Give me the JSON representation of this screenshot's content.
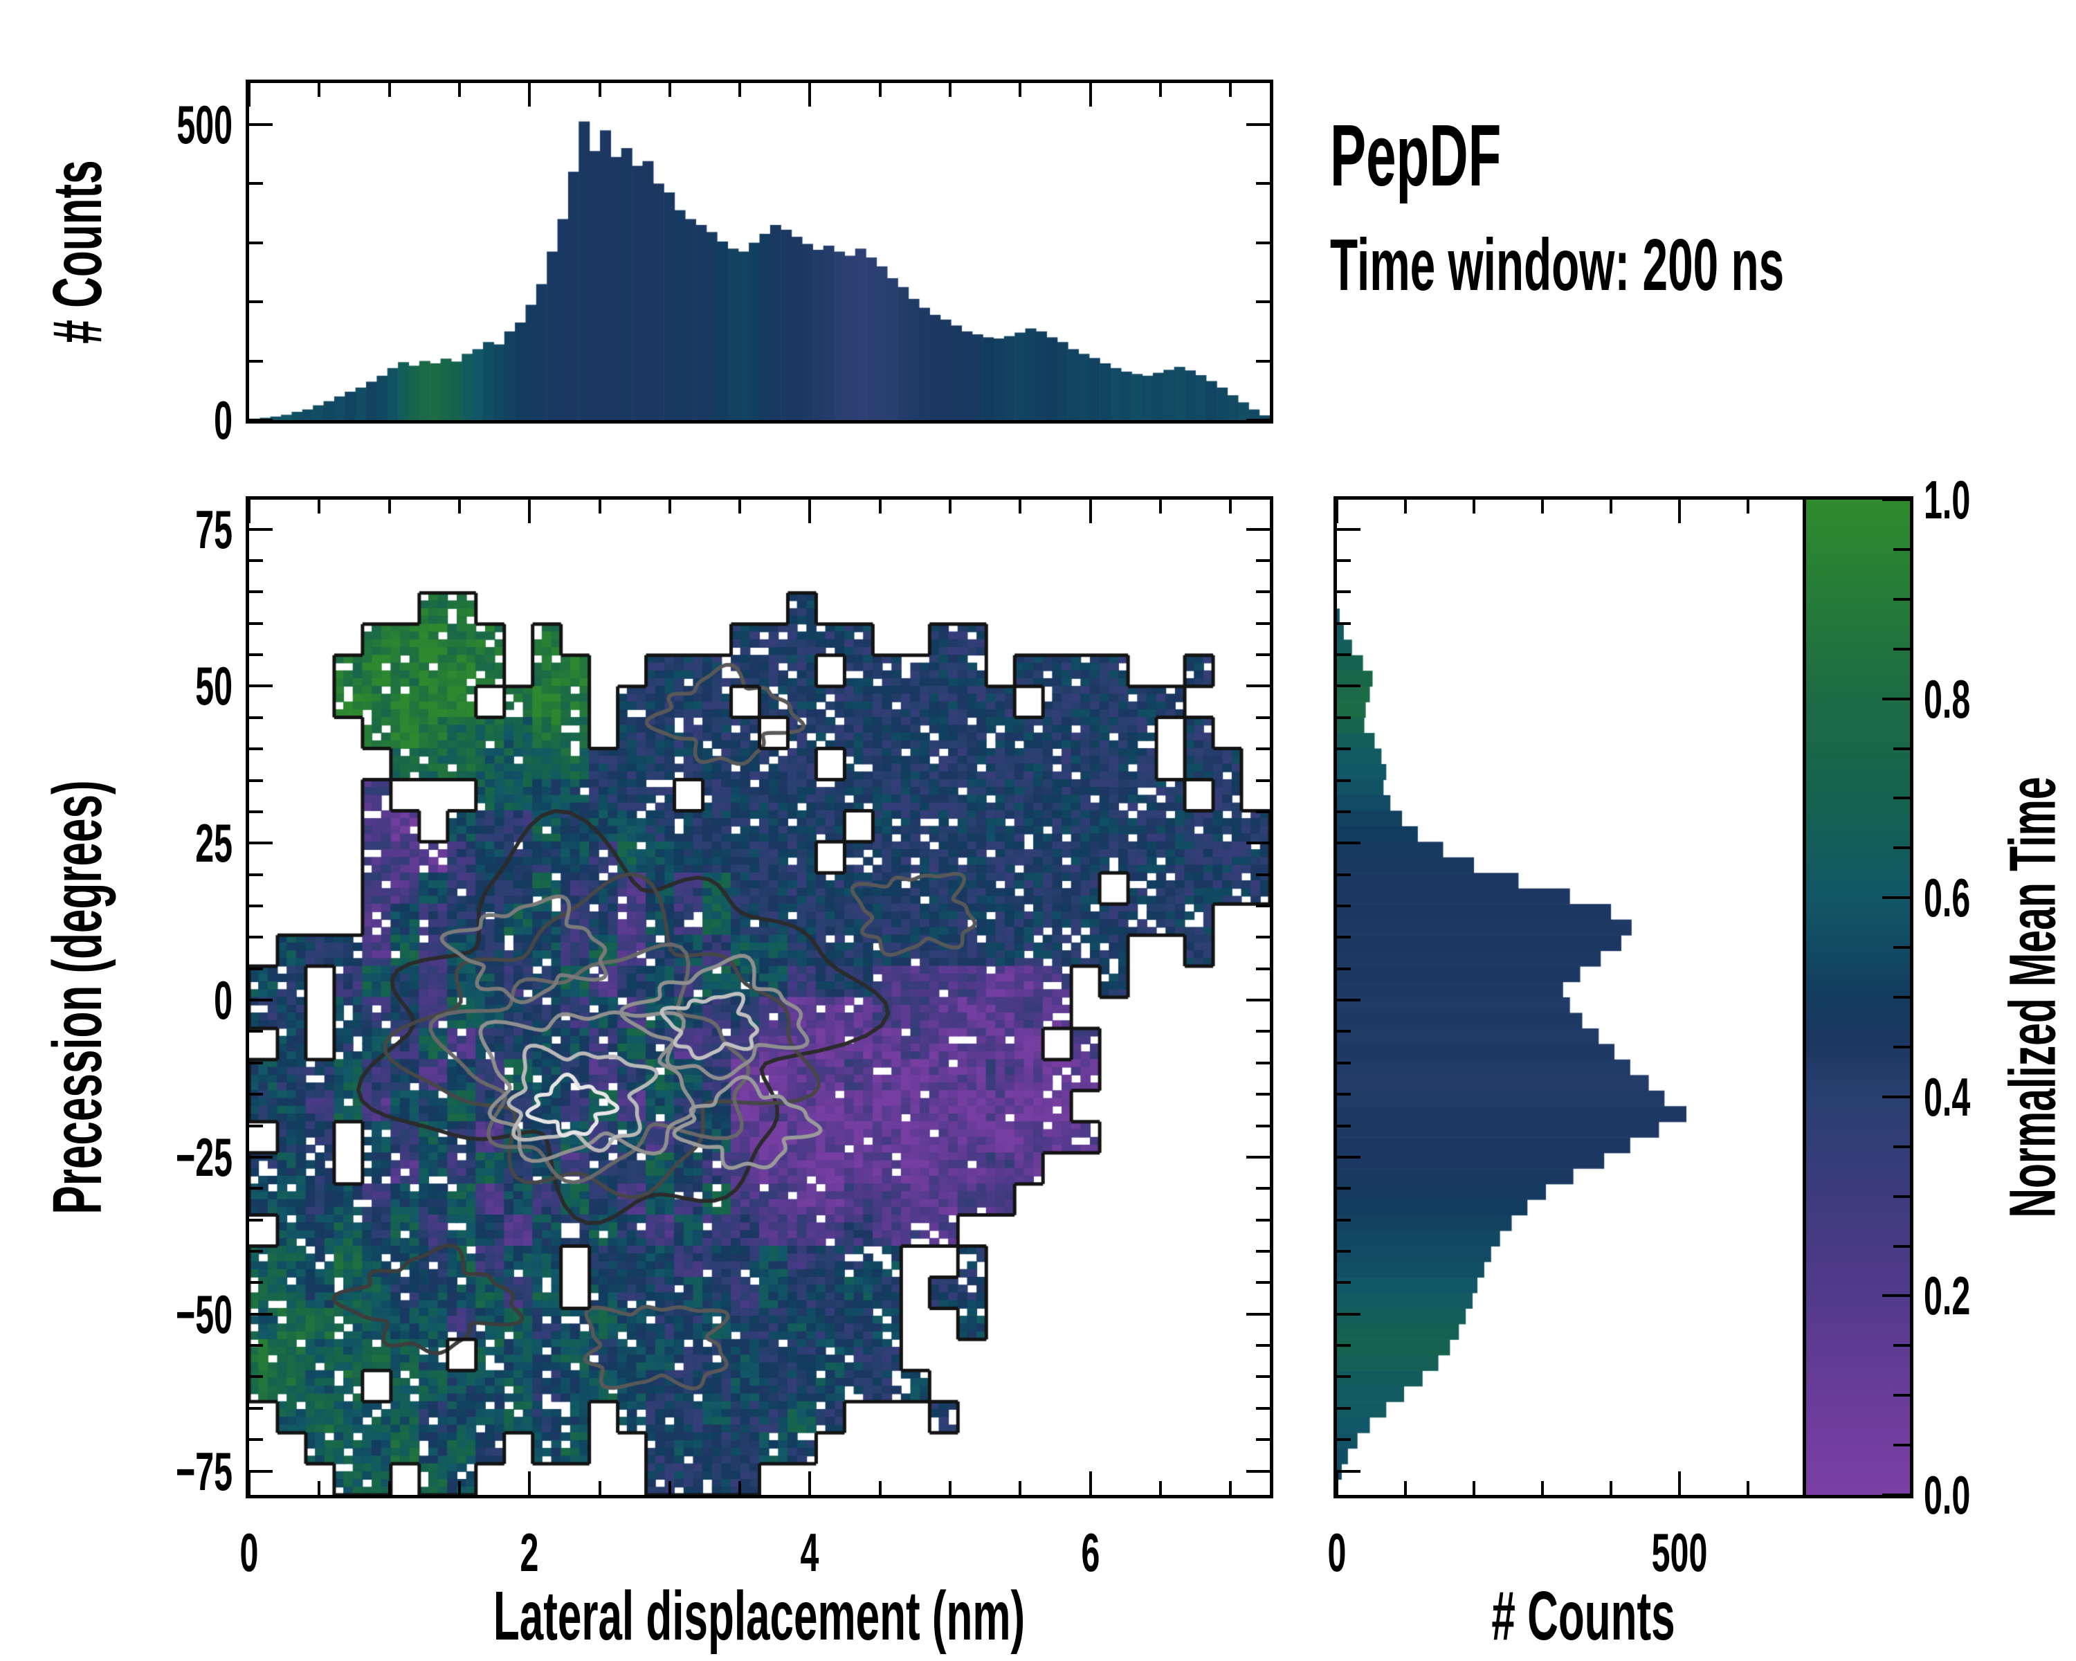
{
  "title": "PepDF",
  "subtitle": "Time window: 200 ns",
  "axes": {
    "main": {
      "xlabel": "Lateral displacement (nm)",
      "ylabel": "Precession (degrees)",
      "xlim": [
        0,
        7.28
      ],
      "ylim": [
        -78.8,
        79.7
      ],
      "xticks": [
        0,
        2,
        4,
        6
      ],
      "xtick_labels": [
        "0",
        "2",
        "4",
        "6"
      ],
      "yticks": [
        75,
        50,
        25,
        0,
        -25,
        -50,
        -75
      ],
      "ytick_labels": [
        "75",
        "50",
        "25",
        "0",
        "−25",
        "−50",
        "−75"
      ]
    },
    "top_hist": {
      "ylabel": "# Counts",
      "ylim": [
        0,
        570
      ],
      "yticks": [
        0,
        500
      ],
      "ytick_labels": [
        "0",
        "500"
      ]
    },
    "right_hist": {
      "xlabel": "# Counts",
      "xlim": [
        0,
        720
      ],
      "xticks": [
        0,
        500
      ],
      "xtick_labels": [
        "0",
        "500"
      ]
    }
  },
  "colorbar": {
    "label": "Normalized Mean Time",
    "ticks": [
      1.0,
      0.8,
      0.6,
      0.4,
      0.2,
      0.0
    ],
    "tick_labels": [
      "1.0",
      "0.8",
      "0.6",
      "0.4",
      "0.2",
      "0.0"
    ],
    "colormap_stops": [
      [
        0.0,
        "#7b3fa4"
      ],
      [
        0.1,
        "#693c99"
      ],
      [
        0.2,
        "#523a8b"
      ],
      [
        0.3,
        "#3d3b7e"
      ],
      [
        0.4,
        "#28406f"
      ],
      [
        0.45,
        "#1d3763"
      ],
      [
        0.5,
        "#123c5e"
      ],
      [
        0.55,
        "#114a62"
      ],
      [
        0.6,
        "#125767"
      ],
      [
        0.7,
        "#15634f"
      ],
      [
        0.8,
        "#1d6b44"
      ],
      [
        0.9,
        "#257b38"
      ],
      [
        1.0,
        "#2f8b2d"
      ]
    ]
  },
  "chart_data": [
    {
      "id": "main_map",
      "type": "heatmap",
      "value_label": "Normalized Mean Time",
      "x0_nm": 0,
      "x_bin_nm": 0.2,
      "y_top_deg": 80,
      "y_bin_deg": 5,
      "value_encoding": "digit d means mean-time (d+0.5)/10 ; dot means no data",
      "grid": [
        "....................................",
        "....................................",
        "....................................",
        "......88...........4................",
        "....88988.8......44444..44..........",
        "...898998.89..444444.44444.4444..4..",
        "...98999.898.4444.444444444.44444...",
        "....89877687.44444.4444444444444.4..",
        ".....777666744444444.44444444444.44.",
        "....2...6655444.44444444444444444.4.",
        "....21.54364554444444.44444444444444",
        "....2213544536544444.444444444444444",
        "....32534463425364444444444444.44444",
        "....253446534253644444444444444444..",
        ".544263544536245365444444444444..4..",
        "54.36425534624536553442222112.4.....",
        "44.53426544352653421112211121.......",
        ".5.4536244553642321101121110.2......",
        "544634253654246531011210112101......",
        "45362546435362544011010110100.......",
        ".44.53642546352451011010110111......",
        "454.425364524365321101101121........",
        "554535462536425362211221122.........",
        ".556463542536425332223222...........",
        "66575546355.44534453445..4..........",
        "76566455636.54454354454.44..........",
        "67766563564565445445445..5..........",
        "8766765.655645544544544.............",
        "7767.6655645654445445445............",
        ".67666455645.54454464...4...........",
        "..6657564.56..454454................",
        "...66.75......4444.................."
      ],
      "count_contours": [
        {
          "cx": 2.6,
          "cy": -4.0,
          "rx": 1.55,
          "ry": 27.0,
          "color": "#2b2b2b",
          "ph": 0.5
        },
        {
          "cx": 2.55,
          "cy": -7.0,
          "rx": 1.25,
          "ry": 21.0,
          "color": "#474747",
          "ph": 1.7
        },
        {
          "cx": 2.5,
          "cy": -10.0,
          "rx": 0.98,
          "ry": 16.0,
          "color": "#686868",
          "ph": 2.9
        },
        {
          "cx": 2.42,
          "cy": -13.0,
          "rx": 0.72,
          "ry": 11.5,
          "color": "#8f8f8f",
          "ph": 4.1
        },
        {
          "cx": 2.35,
          "cy": -15.5,
          "rx": 0.48,
          "ry": 7.5,
          "color": "#b8b8b8",
          "ph": 5.3
        },
        {
          "cx": 2.3,
          "cy": -17.0,
          "rx": 0.26,
          "ry": 4.0,
          "color": "#e6e6e6",
          "ph": 0.9
        },
        {
          "cx": 3.35,
          "cy": -3.0,
          "rx": 0.55,
          "ry": 8.0,
          "color": "#8f8f8f",
          "ph": 2.2
        },
        {
          "cx": 3.3,
          "cy": -4.0,
          "rx": 0.3,
          "ry": 4.5,
          "color": "#c0c0c0",
          "ph": 3.3
        },
        {
          "cx": 3.55,
          "cy": -20.0,
          "rx": 0.42,
          "ry": 6.0,
          "color": "#9a9a9a",
          "ph": 1.1
        },
        {
          "cx": 2.0,
          "cy": 8.0,
          "rx": 0.5,
          "ry": 7.0,
          "color": "#7a7a7a",
          "ph": 2.6
        },
        {
          "cx": 3.4,
          "cy": 45.0,
          "rx": 0.45,
          "ry": 6.5,
          "color": "#585858",
          "ph": 1.4
        },
        {
          "cx": 4.75,
          "cy": 14.0,
          "rx": 0.4,
          "ry": 6.0,
          "color": "#585858",
          "ph": 3.8
        },
        {
          "cx": 1.3,
          "cy": -48.0,
          "rx": 0.55,
          "ry": 7.0,
          "color": "#3d3d3d",
          "ph": 2.0
        },
        {
          "cx": 2.9,
          "cy": -55.0,
          "rx": 0.5,
          "ry": 6.5,
          "color": "#585858",
          "ph": 4.5
        }
      ]
    },
    {
      "id": "top_hist",
      "type": "bar",
      "orientation": "vertical",
      "x0_nm": 0,
      "bin_width_nm": 0.0758,
      "counts": [
        2,
        4,
        6,
        9,
        14,
        18,
        25,
        32,
        40,
        48,
        55,
        65,
        75,
        88,
        98,
        92,
        100,
        96,
        104,
        99,
        112,
        120,
        132,
        128,
        150,
        165,
        195,
        230,
        285,
        340,
        420,
        505,
        455,
        490,
        445,
        460,
        430,
        438,
        400,
        385,
        355,
        340,
        330,
        318,
        302,
        290,
        285,
        300,
        315,
        330,
        322,
        310,
        298,
        288,
        295,
        285,
        278,
        290,
        275,
        260,
        240,
        225,
        205,
        190,
        178,
        170,
        160,
        150,
        145,
        140,
        138,
        142,
        148,
        155,
        150,
        140,
        132,
        120,
        112,
        105,
        96,
        88,
        82,
        78,
        75,
        80,
        85,
        90,
        84,
        76,
        66,
        55,
        42,
        30,
        18,
        8
      ],
      "mean_time": [
        0.62,
        0.6,
        0.58,
        0.6,
        0.57,
        0.55,
        0.56,
        0.54,
        0.55,
        0.53,
        0.56,
        0.52,
        0.54,
        0.58,
        0.66,
        0.72,
        0.78,
        0.8,
        0.75,
        0.7,
        0.64,
        0.6,
        0.56,
        0.54,
        0.52,
        0.5,
        0.49,
        0.48,
        0.47,
        0.46,
        0.46,
        0.47,
        0.46,
        0.45,
        0.46,
        0.47,
        0.46,
        0.45,
        0.46,
        0.47,
        0.48,
        0.47,
        0.46,
        0.48,
        0.5,
        0.52,
        0.53,
        0.51,
        0.49,
        0.47,
        0.46,
        0.45,
        0.44,
        0.43,
        0.42,
        0.4,
        0.38,
        0.37,
        0.38,
        0.39,
        0.4,
        0.42,
        0.43,
        0.44,
        0.45,
        0.46,
        0.47,
        0.46,
        0.48,
        0.5,
        0.51,
        0.52,
        0.53,
        0.52,
        0.51,
        0.5,
        0.52,
        0.53,
        0.54,
        0.52,
        0.53,
        0.55,
        0.54,
        0.56,
        0.55,
        0.54,
        0.55,
        0.56,
        0.54,
        0.55,
        0.53,
        0.54,
        0.55,
        0.56,
        0.55,
        0.54
      ]
    },
    {
      "id": "right_hist",
      "type": "bar",
      "orientation": "horizontal",
      "y_start_deg": 80,
      "bin_height_deg": 2.5,
      "counts": [
        0,
        0,
        0,
        0,
        0,
        0,
        0,
        4,
        10,
        22,
        38,
        52,
        48,
        42,
        40,
        55,
        65,
        72,
        68,
        78,
        95,
        118,
        155,
        200,
        265,
        340,
        400,
        430,
        415,
        385,
        355,
        330,
        340,
        358,
        382,
        405,
        428,
        455,
        478,
        510,
        470,
        428,
        390,
        345,
        305,
        278,
        255,
        238,
        225,
        215,
        205,
        198,
        188,
        178,
        165,
        148,
        125,
        98,
        72,
        48,
        30,
        16,
        7,
        0
      ],
      "mean_time": [
        0.5,
        0.5,
        0.5,
        0.5,
        0.5,
        0.5,
        0.5,
        0.6,
        0.62,
        0.65,
        0.7,
        0.75,
        0.78,
        0.8,
        0.72,
        0.66,
        0.62,
        0.6,
        0.58,
        0.55,
        0.52,
        0.5,
        0.48,
        0.47,
        0.46,
        0.45,
        0.45,
        0.44,
        0.45,
        0.44,
        0.45,
        0.44,
        0.43,
        0.44,
        0.43,
        0.44,
        0.43,
        0.42,
        0.43,
        0.44,
        0.44,
        0.45,
        0.46,
        0.47,
        0.48,
        0.5,
        0.52,
        0.54,
        0.55,
        0.57,
        0.6,
        0.63,
        0.65,
        0.68,
        0.7,
        0.67,
        0.64,
        0.62,
        0.63,
        0.6,
        0.58,
        0.56,
        0.55,
        0.54
      ]
    }
  ]
}
